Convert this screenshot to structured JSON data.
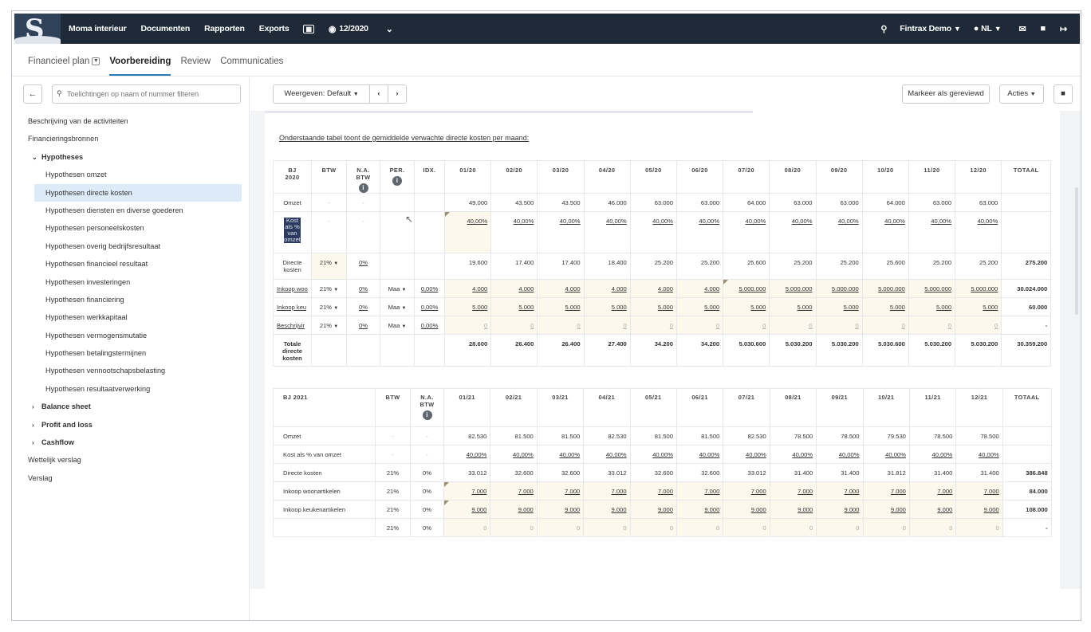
{
  "topbar": {
    "nav": [
      "Moma interieur",
      "Documenten",
      "Rapporten",
      "Exports"
    ],
    "period": "12/2020",
    "company": "Fintrax Demo",
    "language": "NL"
  },
  "tabs": [
    "Financieel plan",
    "Voorbereiding",
    "Review",
    "Communicaties"
  ],
  "sidebar": {
    "filter_placeholder": "Toelichtingen op naam of nummer filteren",
    "items": {
      "beschrijving": "Beschrijving van de activiteiten",
      "financieringsbronnen": "Financieringsbronnen",
      "hypotheses": "Hypotheses",
      "sub": [
        "Hypothesen omzet",
        "Hypothesen directe kosten",
        "Hypothesen diensten en diverse goederen",
        "Hypothesen personeelskosten",
        "Hypothesen overig bedrijfsresultaat",
        "Hypothesen financieel resultaat",
        "Hypothesen investeringen",
        "Hypothesen financiering",
        "Hypothesen werkkapitaal",
        "Hypothesen vermogensmutatie",
        "Hypothesen betalingstermijnen",
        "Hypothesen vennootschapsbelasting",
        "Hypothesen resultaatverwerking"
      ],
      "balance": "Balance sheet",
      "pnl": "Profit and loss",
      "cashflow": "Cashflow",
      "wettelijk": "Wettelijk verslag",
      "verslag": "Verslag"
    }
  },
  "toolbar": {
    "weergeven": "Weergeven: Default",
    "markeer": "Markeer als gereviewd",
    "acties": "Acties"
  },
  "intro": "Onderstaande tabel toont de gemiddelde verwachte directe kosten per maand:",
  "table2020": {
    "h_bj": "BJ",
    "h_year": "2020",
    "h_btw": "BTW",
    "h_na_btw": [
      "N.A.",
      "BTW"
    ],
    "h_per": "PER.",
    "h_idx": "IDX.",
    "months": [
      "01/20",
      "02/20",
      "03/20",
      "04/20",
      "05/20",
      "06/20",
      "07/20",
      "08/20",
      "09/20",
      "10/20",
      "11/20",
      "12/20"
    ],
    "h_totaal": "TOTAAL",
    "omzet": {
      "label": "Omzet",
      "btw": "-",
      "nabtw": "-",
      "vals": [
        "49.000",
        "43.500",
        "43.500",
        "46.000",
        "63.000",
        "63.000",
        "64.000",
        "63.000",
        "63.000",
        "64.000",
        "63.000",
        "63.000"
      ],
      "total": ""
    },
    "kost_pct": {
      "label_lines": [
        "Kost",
        "als %",
        "van",
        "omzet"
      ],
      "btw": "-",
      "nabtw": "-",
      "vals": [
        "40,00%",
        "40,00%",
        "40,00%",
        "40,00%",
        "40,00%",
        "40,00%",
        "40,00%",
        "40,00%",
        "40,00%",
        "40,00%",
        "40,00%",
        "40,00%"
      ],
      "total": ""
    },
    "directe": {
      "label_lines": [
        "Directe",
        "kosten"
      ],
      "btw": "21%",
      "nabtw": "0%",
      "vals": [
        "19.600",
        "17.400",
        "17.400",
        "18.400",
        "25.200",
        "25.200",
        "25.600",
        "25.200",
        "25.200",
        "25.600",
        "25.200",
        "25.200"
      ],
      "total": "275.200"
    },
    "inkoop_woon": {
      "label": "Inkoop woo",
      "btw": "21%",
      "nabtw": "0%",
      "per": "Maa",
      "idx": "0,00%",
      "vals": [
        "4.000",
        "4.000",
        "4.000",
        "4.000",
        "4.000",
        "4.000",
        "5.000.000",
        "5.000.000",
        "5.000.000",
        "5.000.000",
        "5.000.000",
        "5.000.000"
      ],
      "total": "30.024.000"
    },
    "inkoop_keuken": {
      "label": "Inkoop keu",
      "btw": "21%",
      "nabtw": "0%",
      "per": "Maa",
      "idx": "0,00%",
      "vals": [
        "5.000",
        "5.000",
        "5.000",
        "5.000",
        "5.000",
        "5.000",
        "5.000",
        "5.000",
        "5.000",
        "5.000",
        "5.000",
        "5.000"
      ],
      "total": "60.000"
    },
    "beschrijving": {
      "label": "Beschrijvir",
      "btw": "21%",
      "nabtw": "0%",
      "per": "Maa",
      "idx": "0,00%",
      "vals": [
        "0",
        "0",
        "0",
        "0",
        "0",
        "0",
        "0",
        "0",
        "0",
        "0",
        "0",
        "0"
      ],
      "total": "-"
    },
    "totale": {
      "label_lines": [
        "Totale",
        "directe",
        "kosten"
      ],
      "vals": [
        "28.600",
        "26.400",
        "26.400",
        "27.400",
        "34.200",
        "34.200",
        "5.030.600",
        "5.030.200",
        "5.030.200",
        "5.030.600",
        "5.030.200",
        "5.030.200"
      ],
      "total": "30.359.200"
    }
  },
  "table2021": {
    "h_bj": "BJ 2021",
    "h_btw": "BTW",
    "h_na_btw": [
      "N.A.",
      "BTW"
    ],
    "months": [
      "01/21",
      "02/21",
      "03/21",
      "04/21",
      "05/21",
      "06/21",
      "07/21",
      "08/21",
      "09/21",
      "10/21",
      "11/21",
      "12/21"
    ],
    "h_totaal": "TOTAAL",
    "rows": [
      {
        "label": "Omzet",
        "btw": "-",
        "nabtw": "-",
        "vals": [
          "82.530",
          "81.500",
          "81.500",
          "82.530",
          "81.500",
          "81.500",
          "82.530",
          "78.500",
          "78.500",
          "79.530",
          "78.500",
          "78.500"
        ],
        "total": "",
        "u": false,
        "b": false
      },
      {
        "label": "Kost als % van omzet",
        "btw": "-",
        "nabtw": "-",
        "vals": [
          "40,00%",
          "40,00%",
          "40,00%",
          "40,00%",
          "40,00%",
          "40,00%",
          "40,00%",
          "40,00%",
          "40,00%",
          "40,00%",
          "40,00%",
          "40,00%"
        ],
        "total": "",
        "u": true,
        "b": false
      },
      {
        "label": "Directe kosten",
        "btw": "21%",
        "nabtw": "0%",
        "vals": [
          "33.012",
          "32.600",
          "32.600",
          "33.012",
          "32.600",
          "32.600",
          "33.012",
          "31.400",
          "31.400",
          "31.812",
          "31.400",
          "31.400"
        ],
        "total": "386.848",
        "u": false,
        "b": false
      },
      {
        "label": "Inkoop woonartikelen",
        "btw": "21%",
        "nabtw": "0%",
        "vals": [
          "7.000",
          "7.000",
          "7.000",
          "7.000",
          "7.000",
          "7.000",
          "7.000",
          "7.000",
          "7.000",
          "7.000",
          "7.000",
          "7.000"
        ],
        "total": "84.000",
        "u": true,
        "b": false
      },
      {
        "label": "Inkoop keukenartikelen",
        "btw": "21%",
        "nabtw": "0%",
        "vals": [
          "9.000",
          "9.000",
          "9.000",
          "9.000",
          "9.000",
          "9.000",
          "9.000",
          "9.000",
          "9.000",
          "9.000",
          "9.000",
          "9.000"
        ],
        "total": "108.000",
        "u": true,
        "b": false
      },
      {
        "label": "",
        "btw": "21%",
        "nabtw": "0%",
        "vals": [
          "0",
          "0",
          "0",
          "0",
          "0",
          "0",
          "0",
          "0",
          "0",
          "0",
          "0",
          "0"
        ],
        "total": "-",
        "u": false,
        "b": false
      }
    ]
  }
}
